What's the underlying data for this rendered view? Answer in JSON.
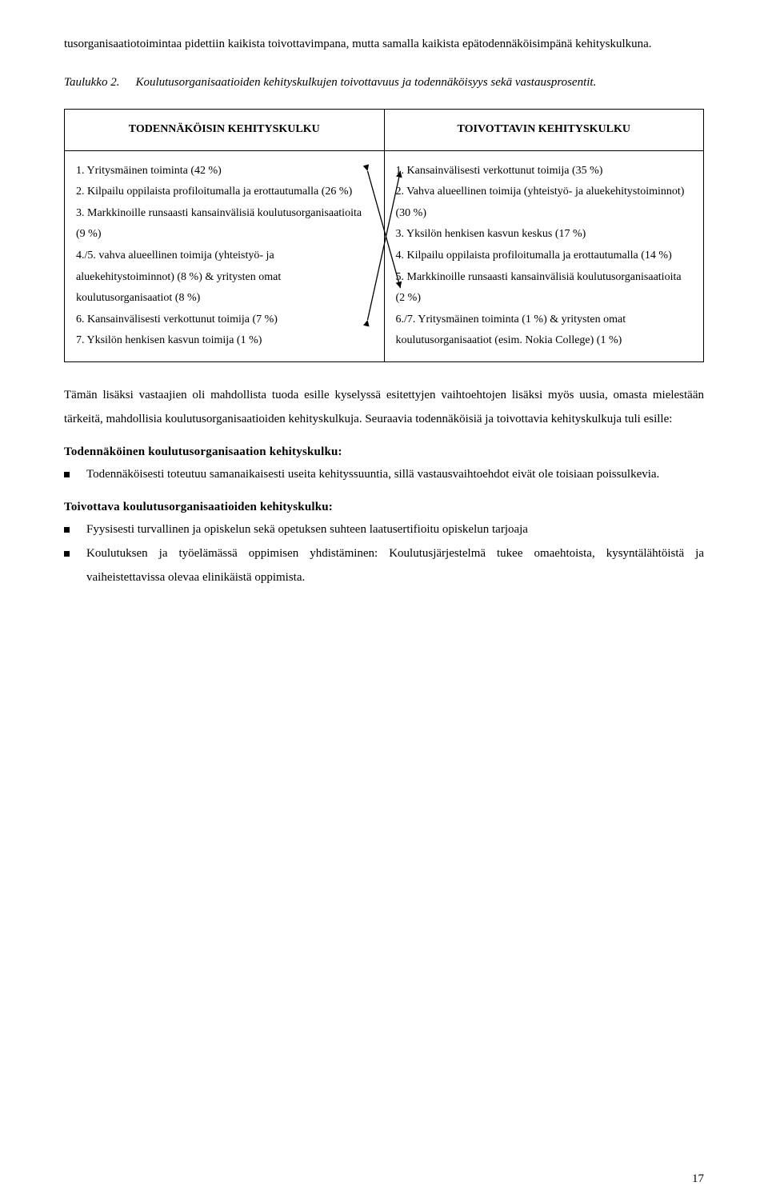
{
  "intro_paragraph": "tusorganisaatiotoimintaa pidettiin kaikista toivottavimpana, mutta samalla kaikista epätodennäköisimpänä kehityskulkuna.",
  "table_caption_label": "Taulukko 2.",
  "table_caption_text": "Koulutusorganisaatioiden kehityskulkujen toivottavuus ja todennäköisyys sekä vastausprosentit.",
  "table": {
    "header_left": "TODENNÄKÖISIN KEHITYSKULKU",
    "header_right": "TOIVOTTAVIN KEHITYSKULKU",
    "left_items": [
      "1. Yritysmäinen toiminta (42 %)",
      "2. Kilpailu oppilaista profiloitumalla ja erottautumalla (26 %)",
      "3. Markkinoille runsaasti kansainvälisiä koulutusorganisaatioita (9 %)",
      "4./5. vahva alueellinen toimija (yhteistyö- ja aluekehitystoiminnot) (8 %) & yritysten omat koulutusorganisaatiot (8 %)",
      "6. Kansainvälisesti verkottunut toimija (7 %)",
      "7. Yksilön henkisen kasvun toimija (1 %)"
    ],
    "right_items": [
      "1. Kansainvälisesti verkottunut toimija (35 %)",
      "2. Vahva alueellinen toimija (yhteistyö- ja aluekehitystoiminnot) (30 %)",
      "3. Yksilön henkisen kasvun keskus (17 %)",
      "4. Kilpailu oppilaista profiloitumalla ja erottautumalla (14 %)",
      "5. Markkinoille runsaasti kansainvälisiä koulutusorganisaatioita (2 %)",
      "6./7. Yritysmäinen toiminta (1 %) & yritysten omat koulutusorganisaatiot (esim. Nokia College) (1 %)"
    ]
  },
  "post_table_paragraph": "Tämän lisäksi vastaajien oli mahdollista tuoda esille kyselyssä esitettyjen vaihtoehtojen lisäksi myös uusia, omasta mielestään tärkeitä, mahdollisia koulutusorganisaatioiden kehityskulkuja. Seuraavia todennäköisiä ja toivottavia kehityskulkuja tuli esille:",
  "section1_heading": "Todennäköinen koulutusorganisaation kehityskulku:",
  "section1_bullets": [
    "Todennäköisesti toteutuu samanaikaisesti useita kehityssuuntia, sillä vastausvaihtoehdot eivät ole toisiaan poissulkevia."
  ],
  "section2_heading": "Toivottava koulutusorganisaatioiden kehityskulku:",
  "section2_bullets": [
    "Fyysisesti turvallinen ja opiskelun sekä opetuksen suhteen laatusertifioitu opiskelun tarjoaja",
    "Koulutuksen ja työelämässä oppimisen yhdistäminen: Koulutusjärjestelmä tukee omaehtoista, kysyntälähtöistä ja vaiheistettavissa olevaa elinikäistä oppimista."
  ],
  "page_number": "17",
  "colors": {
    "text": "#000000",
    "background": "#ffffff",
    "table_border": "#000000",
    "arrow_color": "#000000"
  },
  "cross_arrows": {
    "left_item_index_a": 0,
    "right_item_index_a": 4,
    "left_item_index_b": 4,
    "right_item_index_b": 0
  }
}
